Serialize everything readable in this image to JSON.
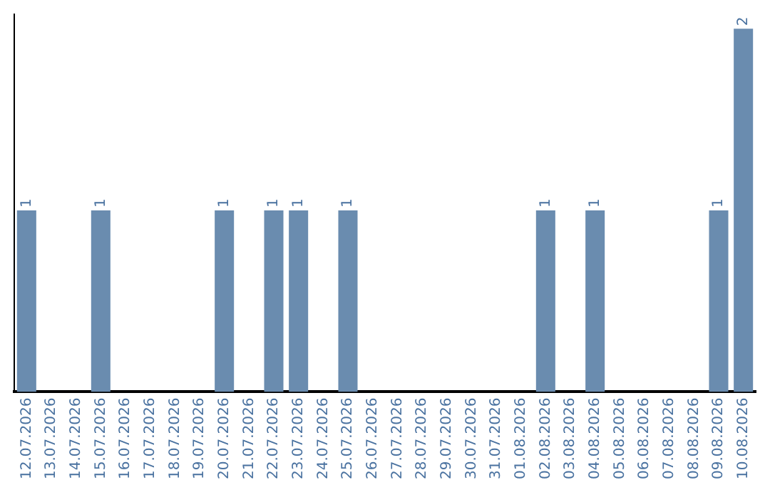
{
  "chart_data": {
    "type": "bar",
    "categories": [
      "12.07.2026",
      "13.07.2026",
      "14.07.2026",
      "15.07.2026",
      "16.07.2026",
      "17.07.2026",
      "18.07.2026",
      "19.07.2026",
      "20.07.2026",
      "21.07.2026",
      "22.07.2026",
      "23.07.2026",
      "24.07.2026",
      "25.07.2026",
      "26.07.2026",
      "27.07.2026",
      "28.07.2026",
      "29.07.2026",
      "30.07.2026",
      "31.07.2026",
      "01.08.2026",
      "02.08.2026",
      "03.08.2026",
      "04.08.2026",
      "05.08.2026",
      "06.08.2026",
      "07.08.2026",
      "08.08.2026",
      "09.08.2026",
      "10.08.2026"
    ],
    "values": [
      1,
      0,
      0,
      1,
      0,
      0,
      0,
      0,
      1,
      0,
      1,
      1,
      0,
      1,
      0,
      0,
      0,
      0,
      0,
      0,
      0,
      1,
      0,
      1,
      0,
      0,
      0,
      0,
      1,
      2
    ],
    "value_labels": [
      "1",
      null,
      null,
      "1",
      null,
      null,
      null,
      null,
      "1",
      null,
      "1",
      "1",
      null,
      "1",
      null,
      null,
      null,
      null,
      null,
      null,
      null,
      "1",
      null,
      "1",
      null,
      null,
      null,
      null,
      "1",
      "2"
    ],
    "color": "#6a8caf",
    "ylim": [
      0,
      2.08
    ],
    "grid": false,
    "legend": false
  }
}
